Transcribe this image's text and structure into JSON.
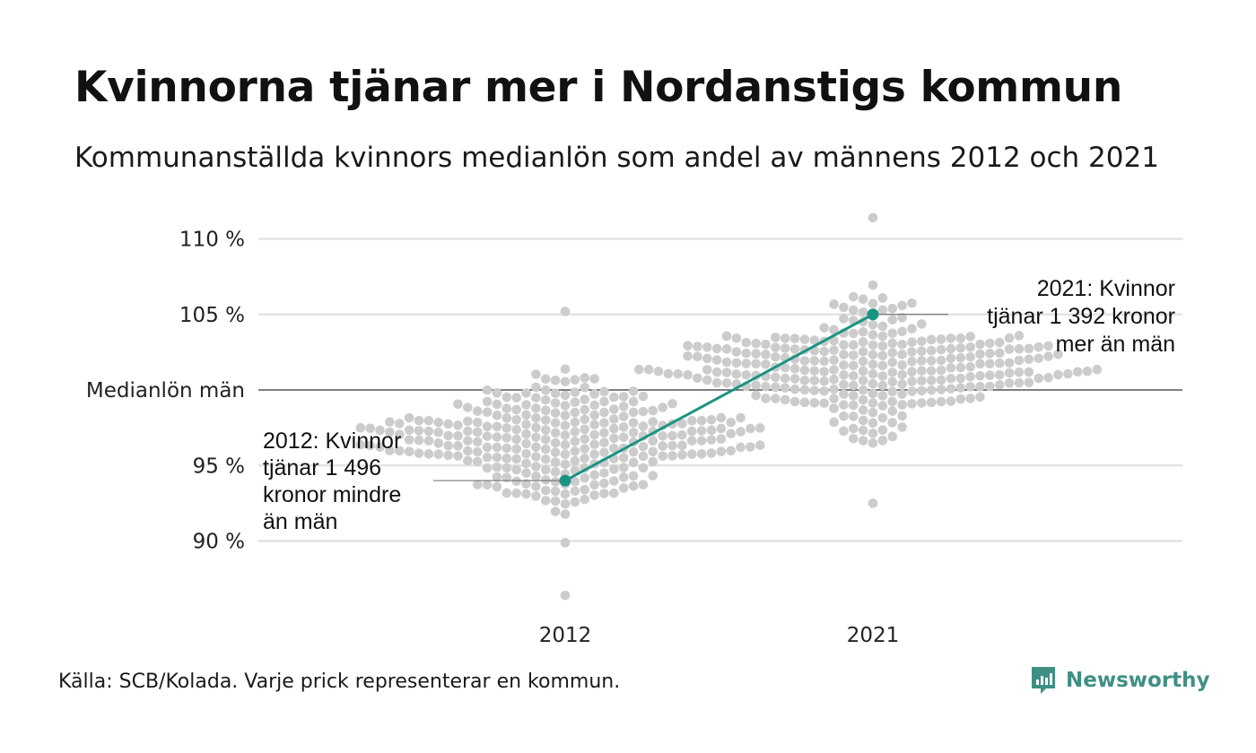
{
  "title": "Kvinnorna tjänar mer i Nordanstigs kommun",
  "subtitle": "Kommunanställda kvinnors medianlön som andel av männens 2012 och 2021",
  "source": "Källa: SCB/Kolada. Varje prick representerar en kommun.",
  "brand": "Newsworthy",
  "colors": {
    "accent": "#1a9481",
    "dots": "#cccccc",
    "grid": "#e3e3e3",
    "baseline": "#333333",
    "brand": "#3f8f84"
  },
  "chart_data": {
    "type": "scatter",
    "x": [
      "2012",
      "2021"
    ],
    "ylim": [
      86,
      112
    ],
    "y_ticks": [
      {
        "value": 110,
        "label": "110 %"
      },
      {
        "value": 105,
        "label": "105 %"
      },
      {
        "value": 100,
        "label": "Medianlön män"
      },
      {
        "value": 95,
        "label": "95 %"
      },
      {
        "value": 90,
        "label": "90 %"
      }
    ],
    "highlight": {
      "name": "Nordanstig",
      "values": [
        {
          "x": "2012",
          "y": 94
        },
        {
          "x": "2021",
          "y": 105
        }
      ]
    },
    "annotations": [
      {
        "x": "2012",
        "lines": [
          "2012: Kvinnor",
          "tjänar 1 496",
          "kronor mindre",
          "än män"
        ]
      },
      {
        "x": "2021",
        "lines": [
          "2021: Kvinnor",
          "tjänar 1 392 kronor",
          "mer än män"
        ]
      }
    ],
    "distributions": [
      {
        "x": "2012",
        "min": 86.4,
        "max": 105.2,
        "center": 96.5,
        "spread": 2.6,
        "count": 290
      },
      {
        "x": "2021",
        "min": 92.5,
        "max": 111.4,
        "center": 101.5,
        "spread": 2.7,
        "count": 290
      }
    ]
  }
}
